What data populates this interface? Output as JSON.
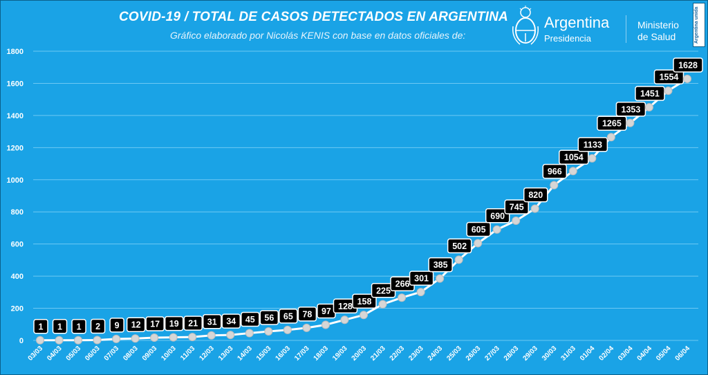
{
  "header": {
    "title": "COVID-19  /  TOTAL DE CASOS DETECTADOS EN ARGENTINA",
    "subtitle": "Gráfico elaborado por Nicolás KENIS con base en datos oficiales de:"
  },
  "brand": {
    "country": "Argentina",
    "presidency": "Presidencia",
    "ministry_line1": "Ministerio",
    "ministry_line2": "de Salud",
    "badge": "Argentina unida"
  },
  "colors": {
    "background": "#1aa3e6",
    "line": "#ffffff",
    "marker": "#d6d6d6",
    "label_box": "#000000",
    "label_text": "#ffffff",
    "grid": "#6ec9f3"
  },
  "chart_data": {
    "type": "line",
    "title": "COVID-19  /  TOTAL DE CASOS DETECTADOS EN ARGENTINA",
    "xlabel": "",
    "ylabel": "",
    "ylim": [
      0,
      1800
    ],
    "yticks": [
      0,
      200,
      400,
      600,
      800,
      1000,
      1200,
      1400,
      1600,
      1800
    ],
    "grid": true,
    "categories": [
      "03/03",
      "04/03",
      "05/03",
      "06/03",
      "07/03",
      "08/03",
      "09/03",
      "10/03",
      "11/03",
      "12/03",
      "13/03",
      "14/03",
      "15/03",
      "16/03",
      "17/03",
      "18/03",
      "19/03",
      "20/03",
      "21/03",
      "22/03",
      "23/03",
      "24/03",
      "25/03",
      "26/03",
      "27/03",
      "28/03",
      "29/03",
      "30/03",
      "31/03",
      "01/04",
      "02/04",
      "03/04",
      "04/04",
      "05/04",
      "06/04"
    ],
    "values": [
      1,
      1,
      1,
      2,
      9,
      12,
      17,
      19,
      21,
      31,
      34,
      45,
      56,
      65,
      78,
      97,
      128,
      158,
      225,
      266,
      301,
      385,
      502,
      605,
      690,
      745,
      820,
      966,
      1054,
      1133,
      1265,
      1353,
      1451,
      1554,
      1628
    ]
  }
}
